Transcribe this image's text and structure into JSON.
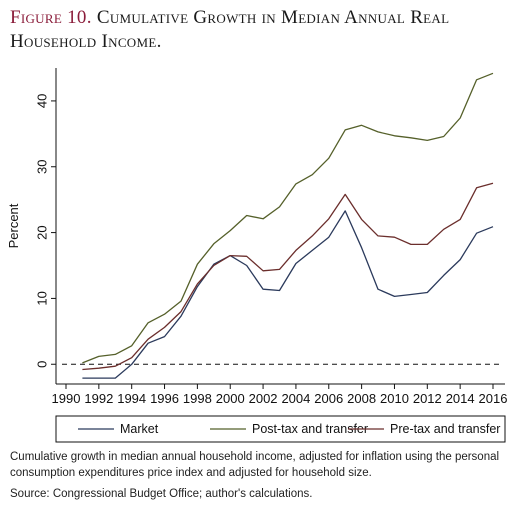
{
  "figure": {
    "label": "Figure 10.",
    "title": "Cumulative Growth in Median Annual Real Household Income.",
    "caption": "Cumulative growth in median annual household income, adjusted for inflation using the personal consumption expenditures price index and adjusted for household size.",
    "source": "Source: Congressional Budget Office; author's calculations."
  },
  "chart_data": {
    "type": "line",
    "xlabel": "",
    "ylabel": "Percent",
    "xlim": [
      1990,
      2016
    ],
    "ylim": [
      -3,
      45
    ],
    "xticks": [
      1990,
      1992,
      1994,
      1996,
      1998,
      2000,
      2002,
      2004,
      2006,
      2008,
      2010,
      2012,
      2014,
      2016
    ],
    "yticks": [
      0,
      10,
      20,
      30,
      40
    ],
    "zero_line": "dashed",
    "grid": false,
    "legend_position": "bottom",
    "x": [
      1991,
      1992,
      1993,
      1994,
      1995,
      1996,
      1997,
      1998,
      1999,
      2000,
      2001,
      2002,
      2003,
      2004,
      2005,
      2006,
      2007,
      2008,
      2009,
      2010,
      2011,
      2012,
      2013,
      2014,
      2015,
      2016
    ],
    "series": [
      {
        "name": "Market",
        "color": "#2b3a5c",
        "values": [
          -2.1,
          -2.1,
          -2.1,
          0.0,
          3.2,
          4.2,
          7.3,
          11.8,
          15.2,
          16.5,
          15.0,
          11.4,
          11.2,
          15.3,
          17.3,
          19.3,
          23.3,
          17.7,
          11.4,
          10.3,
          10.6,
          10.9,
          13.5,
          15.9,
          19.9,
          20.9
        ]
      },
      {
        "name": "Post-tax and transfer",
        "color": "#55602a",
        "values": [
          0.2,
          1.2,
          1.5,
          2.8,
          6.3,
          7.6,
          9.6,
          15.2,
          18.3,
          20.3,
          22.6,
          22.1,
          23.9,
          27.4,
          28.8,
          31.3,
          35.6,
          36.3,
          35.3,
          34.7,
          34.4,
          34.0,
          34.6,
          37.4,
          43.2,
          44.2
        ]
      },
      {
        "name": "Pre-tax and transfer",
        "color": "#6b2e2c",
        "values": [
          -0.8,
          -0.6,
          -0.3,
          1.0,
          3.8,
          5.6,
          8.0,
          12.2,
          15.0,
          16.5,
          16.4,
          14.2,
          14.4,
          17.3,
          19.5,
          22.1,
          25.8,
          22.0,
          19.5,
          19.3,
          18.2,
          18.2,
          20.5,
          22.0,
          26.8,
          27.5
        ]
      }
    ]
  }
}
